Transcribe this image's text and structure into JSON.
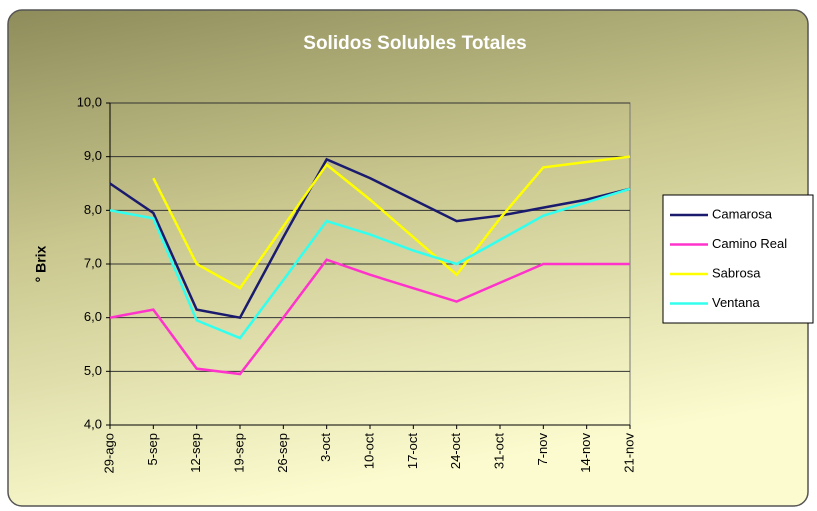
{
  "chart_data": {
    "type": "line",
    "title": "Solidos Solubles Totales",
    "y_label": "° Brix",
    "categories": [
      "29-ago",
      "5-sep",
      "12-sep",
      "19-sep",
      "26-sep",
      "3-oct",
      "10-oct",
      "17-oct",
      "24-oct",
      "31-oct",
      "7-nov",
      "14-nov",
      "21-nov"
    ],
    "series": [
      {
        "name": "Camarosa",
        "color": "#1a1a6e",
        "values": [
          8.5,
          7.95,
          6.15,
          6.0,
          7.5,
          8.95,
          8.6,
          8.2,
          7.8,
          7.9,
          8.05,
          8.2,
          8.4
        ]
      },
      {
        "name": "Camino Real",
        "color": "#ff33cc",
        "values": [
          6.0,
          6.15,
          5.05,
          4.95,
          6.0,
          7.08,
          6.8,
          6.55,
          6.3,
          6.65,
          7.0,
          7.0,
          7.0
        ]
      },
      {
        "name": "Sabrosa",
        "color": "#ffff00",
        "values": [
          null,
          8.6,
          7.0,
          6.55,
          7.7,
          8.85,
          8.2,
          7.5,
          6.8,
          7.85,
          8.8,
          8.9,
          9.0
        ]
      },
      {
        "name": "Ventana",
        "color": "#33ffee",
        "values": [
          8.0,
          7.85,
          5.95,
          5.62,
          6.7,
          7.8,
          7.55,
          7.25,
          7.0,
          7.45,
          7.9,
          8.15,
          8.4
        ]
      }
    ],
    "ylim": [
      4,
      10
    ],
    "yticks": [
      {
        "value": 4,
        "label": "4,0"
      },
      {
        "value": 5,
        "label": "5,0"
      },
      {
        "value": 6,
        "label": "6,0"
      },
      {
        "value": 7,
        "label": "7,0"
      },
      {
        "value": 8,
        "label": "8,0"
      },
      {
        "value": 9,
        "label": "9,0"
      },
      {
        "value": 10,
        "label": "10,0"
      }
    ],
    "grid": true,
    "legend": "right"
  }
}
